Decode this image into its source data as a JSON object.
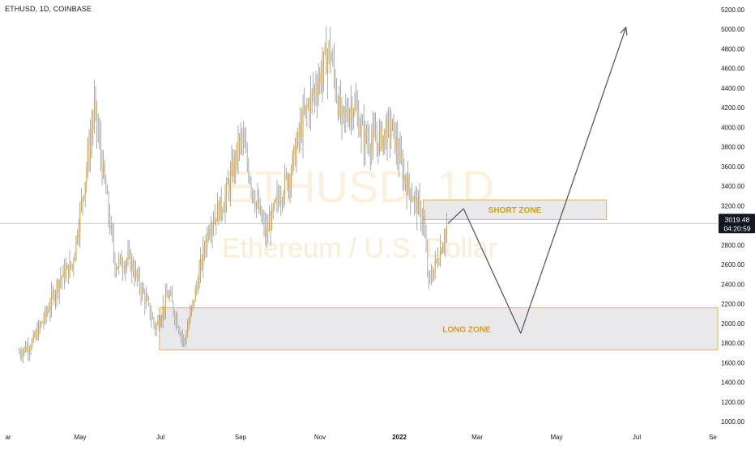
{
  "header": {
    "symbol_label": "ETHUSD, 1D, COINBASE"
  },
  "watermark": {
    "line1": "ETHUSD, 1D",
    "line2": "Ethereum / U.S. Dollar"
  },
  "price_tag": {
    "price": "3019.48",
    "countdown": "04:20:59"
  },
  "zones": {
    "short_label": "SHORT ZONE",
    "long_label": "LONG ZONE"
  },
  "colors": {
    "candle": "#f0a30a",
    "wick": "#8a8a8a",
    "zone_fill": "#e9e9ec",
    "zone_border": "#e0b24a",
    "zone_text": "#d4a017",
    "path": "#555b66",
    "price_tag_bg": "#131722"
  },
  "chart_data": {
    "type": "candlestick",
    "title": "ETHUSD, 1D, COINBASE",
    "x_ticks": [
      "ar",
      "May",
      "Jul",
      "Sep",
      "Nov",
      "2022",
      "Mar",
      "May",
      "Jul",
      "Se"
    ],
    "y_ticks": [
      "5200.00",
      "5000.00",
      "4800.00",
      "4600.00",
      "4400.00",
      "4200.00",
      "4000.00",
      "3800.00",
      "3600.00",
      "3400.00",
      "3200.00",
      "3000.00",
      "2800.00",
      "2600.00",
      "2400.00",
      "2200.00",
      "2000.00",
      "1800.00",
      "1600.00",
      "1400.00",
      "1200.00",
      "1000.00"
    ],
    "ylim": [
      1000,
      5200
    ],
    "last_price": 3019.48,
    "approx_price_path": [
      [
        "2021-03-15",
        1700
      ],
      [
        "2021-03-25",
        1800
      ],
      [
        "2021-04-05",
        2100
      ],
      [
        "2021-04-15",
        2450
      ],
      [
        "2021-04-25",
        2600
      ],
      [
        "2021-05-05",
        3500
      ],
      [
        "2021-05-12",
        4200
      ],
      [
        "2021-05-20",
        3400
      ],
      [
        "2021-05-28",
        2600
      ],
      [
        "2021-06-08",
        2650
      ],
      [
        "2021-06-20",
        2250
      ],
      [
        "2021-06-28",
        1950
      ],
      [
        "2021-07-08",
        2300
      ],
      [
        "2021-07-20",
        1800
      ],
      [
        "2021-07-30",
        2400
      ],
      [
        "2021-08-08",
        3000
      ],
      [
        "2021-08-20",
        3250
      ],
      [
        "2021-09-02",
        3900
      ],
      [
        "2021-09-12",
        3300
      ],
      [
        "2021-09-21",
        2900
      ],
      [
        "2021-10-01",
        3300
      ],
      [
        "2021-10-10",
        3550
      ],
      [
        "2021-10-20",
        4100
      ],
      [
        "2021-11-01",
        4500
      ],
      [
        "2021-11-09",
        4800
      ],
      [
        "2021-11-18",
        4050
      ],
      [
        "2021-11-27",
        4250
      ],
      [
        "2021-12-05",
        3900
      ],
      [
        "2021-12-15",
        3850
      ],
      [
        "2021-12-27",
        4000
      ],
      [
        "2022-01-05",
        3500
      ],
      [
        "2022-01-12",
        3300
      ],
      [
        "2022-01-20",
        3050
      ],
      [
        "2022-01-24",
        2400
      ],
      [
        "2022-02-01",
        2700
      ],
      [
        "2022-02-08",
        3019.48
      ]
    ],
    "zones": [
      {
        "name": "SHORT ZONE",
        "x_start": "2022-01-20",
        "x_end": "2022-06-10",
        "y_low": 3060,
        "y_high": 3260
      },
      {
        "name": "LONG ZONE",
        "x_start": "2021-07-01",
        "x_end": "2022-10-01",
        "y_low": 1730,
        "y_high": 2160
      }
    ],
    "projected_path": [
      [
        "2022-02-08",
        3020
      ],
      [
        "2022-02-20",
        3170
      ],
      [
        "2022-04-05",
        1900
      ],
      [
        "2022-06-25",
        5020
      ]
    ]
  }
}
